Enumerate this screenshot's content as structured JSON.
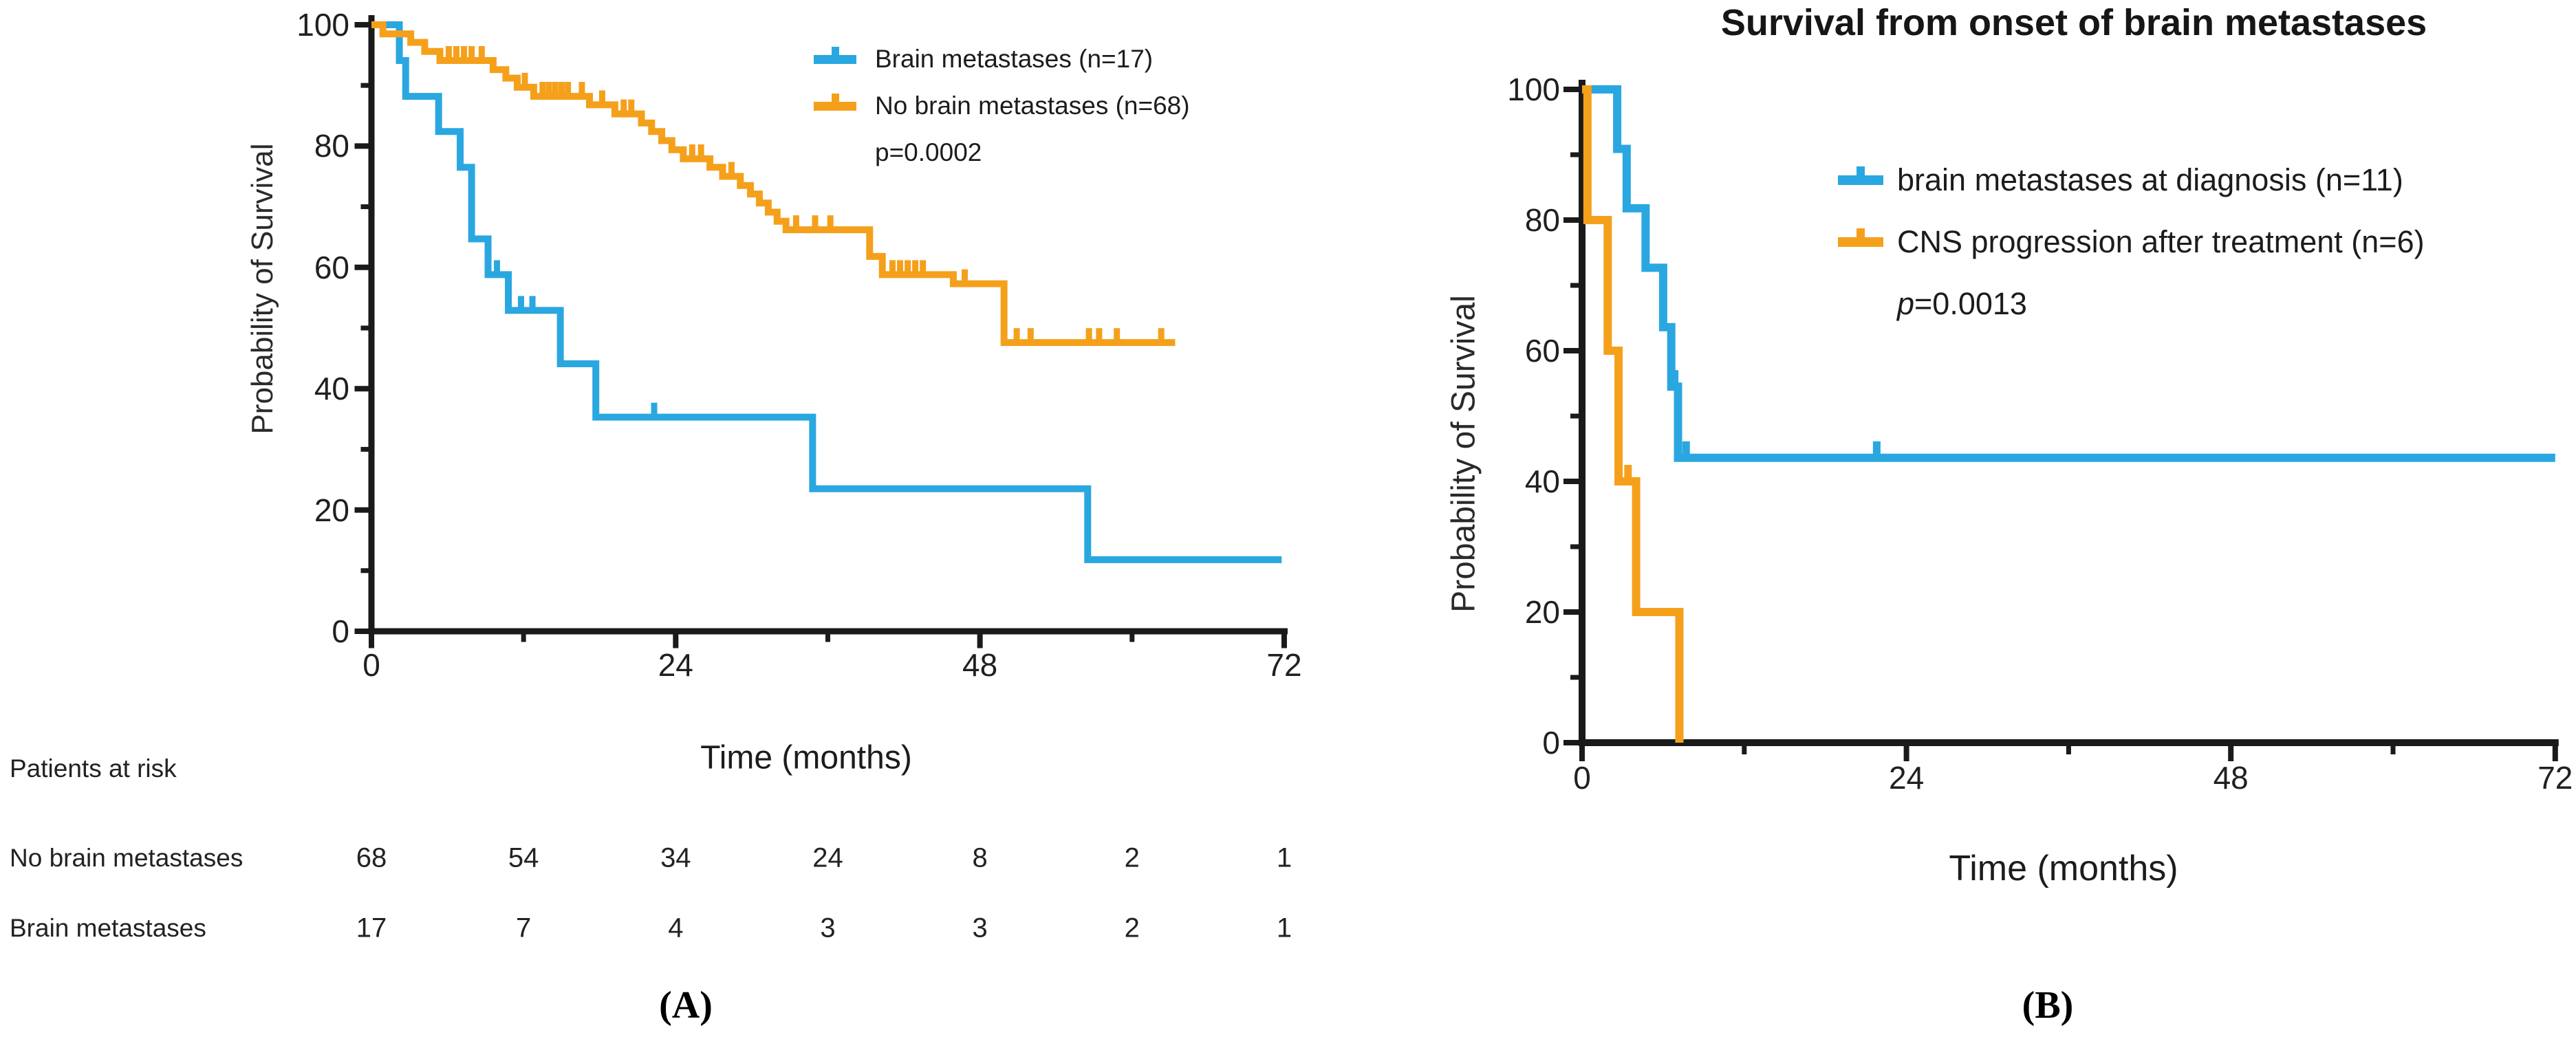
{
  "chart_data": [
    {
      "id": "A",
      "type": "line",
      "subtype": "kaplan_meier_survival",
      "title": "",
      "caption": "(A)",
      "xlabel": "Time (months)",
      "ylabel": "Probability of Survival",
      "xlim": [
        0,
        72
      ],
      "ylim": [
        0,
        100
      ],
      "xticks": [
        0,
        24,
        48,
        72
      ],
      "xminorticks": [
        12,
        36,
        60
      ],
      "yticks": [
        100,
        80,
        60,
        40,
        20,
        0
      ],
      "yminorticks": [
        10,
        30,
        50,
        70,
        90
      ],
      "grid": false,
      "legend_position": "upper right inside",
      "p_value": "p=0.0002",
      "p_italic": false,
      "series": [
        {
          "name": "Brain metastases (n=17)",
          "color": "#2aa7e0",
          "steps": [
            [
              0,
              100
            ],
            [
              2.2,
              94.1
            ],
            [
              2.7,
              88.2
            ],
            [
              5.3,
              82.4
            ],
            [
              7,
              76.5
            ],
            [
              7.9,
              64.7
            ],
            [
              9.2,
              58.8
            ],
            [
              10.8,
              52.9
            ],
            [
              14.9,
              44.1
            ],
            [
              17.7,
              35.3
            ],
            [
              34.8,
              23.5
            ],
            [
              56.5,
              11.8
            ]
          ],
          "end": 71.8,
          "censors": [
            [
              9.9,
              58.8
            ],
            [
              11.8,
              52.9
            ],
            [
              12.7,
              52.9
            ],
            [
              22.3,
              35.3
            ]
          ]
        },
        {
          "name": "No brain metastases (n=68)",
          "color": "#f5a01b",
          "steps": [
            [
              0,
              100
            ],
            [
              0.9,
              98.5
            ],
            [
              3.1,
              97.1
            ],
            [
              4.2,
              95.6
            ],
            [
              5.4,
              94.1
            ],
            [
              9.6,
              92.6
            ],
            [
              10.6,
              91.2
            ],
            [
              11.5,
              89.7
            ],
            [
              12.8,
              88.2
            ],
            [
              17.2,
              86.8
            ],
            [
              19.2,
              85.3
            ],
            [
              21.3,
              83.8
            ],
            [
              22.1,
              82.4
            ],
            [
              22.9,
              80.9
            ],
            [
              23.7,
              79.4
            ],
            [
              24.6,
              77.9
            ],
            [
              26.7,
              76.5
            ],
            [
              27.7,
              75
            ],
            [
              29.1,
              73.5
            ],
            [
              29.9,
              72.1
            ],
            [
              30.6,
              70.6
            ],
            [
              31.3,
              69.1
            ],
            [
              32,
              67.6
            ],
            [
              32.7,
              66.2
            ],
            [
              39.3,
              61.8
            ],
            [
              40.3,
              58.8
            ],
            [
              45.9,
              57.3
            ],
            [
              49.9,
              47.6
            ]
          ],
          "end": 63.4,
          "censors": [
            [
              6.1,
              94.1
            ],
            [
              6.7,
              94.1
            ],
            [
              7.3,
              94.1
            ],
            [
              7.9,
              94.1
            ],
            [
              8.7,
              94.1
            ],
            [
              12.1,
              89.7
            ],
            [
              13.5,
              88.2
            ],
            [
              14,
              88.2
            ],
            [
              14.5,
              88.2
            ],
            [
              15,
              88.2
            ],
            [
              15.5,
              88.2
            ],
            [
              16.6,
              88.2
            ],
            [
              18.2,
              86.8
            ],
            [
              19.9,
              85.3
            ],
            [
              20.5,
              85.3
            ],
            [
              25.3,
              77.9
            ],
            [
              26,
              77.9
            ],
            [
              28.4,
              75
            ],
            [
              33.5,
              66.2
            ],
            [
              35,
              66.2
            ],
            [
              36.2,
              66.2
            ],
            [
              41.1,
              58.8
            ],
            [
              41.7,
              58.8
            ],
            [
              42.3,
              58.8
            ],
            [
              42.9,
              58.8
            ],
            [
              43.5,
              58.8
            ],
            [
              46.8,
              57.3
            ],
            [
              50.9,
              47.6
            ],
            [
              52,
              47.6
            ],
            [
              56.6,
              47.6
            ],
            [
              57.4,
              47.6
            ],
            [
              58.8,
              47.6
            ],
            [
              62.3,
              47.6
            ]
          ]
        }
      ],
      "risk_table": {
        "header": "Patients at risk",
        "time_points": [
          0,
          12,
          24,
          36,
          48,
          60,
          72
        ],
        "rows": [
          {
            "label": "No brain metastases",
            "counts": [
              68,
              54,
              34,
              24,
              8,
              2,
              1
            ]
          },
          {
            "label": "Brain metastases",
            "counts": [
              17,
              7,
              4,
              3,
              3,
              2,
              1
            ]
          }
        ]
      }
    },
    {
      "id": "B",
      "type": "line",
      "subtype": "kaplan_meier_survival",
      "title": "Survival from onset of brain metastases",
      "caption": "(B)",
      "xlabel": "Time (months)",
      "ylabel": "Probability of Survival",
      "xlim": [
        0,
        72
      ],
      "ylim": [
        0,
        100
      ],
      "xticks": [
        0,
        24,
        48,
        72
      ],
      "xminorticks": [
        12,
        36,
        60
      ],
      "yticks": [
        100,
        80,
        60,
        40,
        20,
        0
      ],
      "yminorticks": [
        10,
        30,
        50,
        70,
        90
      ],
      "grid": false,
      "legend_position": "upper right inside",
      "p_value": "p=0.0013",
      "p_italic": true,
      "series": [
        {
          "name": "brain metastases at diagnosis (n=11)",
          "color": "#2aa7e0",
          "steps": [
            [
              0,
              100
            ],
            [
              2.6,
              90.9
            ],
            [
              3.3,
              81.8
            ],
            [
              4.7,
              72.7
            ],
            [
              6,
              63.6
            ],
            [
              6.6,
              54.5
            ],
            [
              7.1,
              43.6
            ]
          ],
          "end": 72,
          "censors": [
            [
              6.85,
              54.5
            ],
            [
              7.7,
              43.6
            ],
            [
              21.8,
              43.6
            ]
          ]
        },
        {
          "name": "CNS progression after treatment (n=6)",
          "color": "#f5a01b",
          "steps": [
            [
              0,
              100
            ],
            [
              0.4,
              80
            ],
            [
              1.9,
              60
            ],
            [
              2.7,
              40
            ],
            [
              4,
              20
            ],
            [
              7.2,
              0
            ]
          ],
          "end": 7.2,
          "censors": [
            [
              3.4,
              40
            ]
          ]
        }
      ]
    }
  ],
  "colors": {
    "axis": "#1a1a1a",
    "text": "#1c1c1c",
    "background": "#ffffff"
  }
}
